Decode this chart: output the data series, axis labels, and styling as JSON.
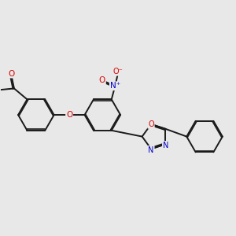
{
  "background_color": "#e8e8e8",
  "bond_color": "#1a1a1a",
  "bond_width": 1.4,
  "atom_colors": {
    "O": "#dd0000",
    "N": "#0000cc",
    "C": "#1a1a1a"
  },
  "figsize": [
    3.0,
    3.0
  ],
  "dpi": 100
}
